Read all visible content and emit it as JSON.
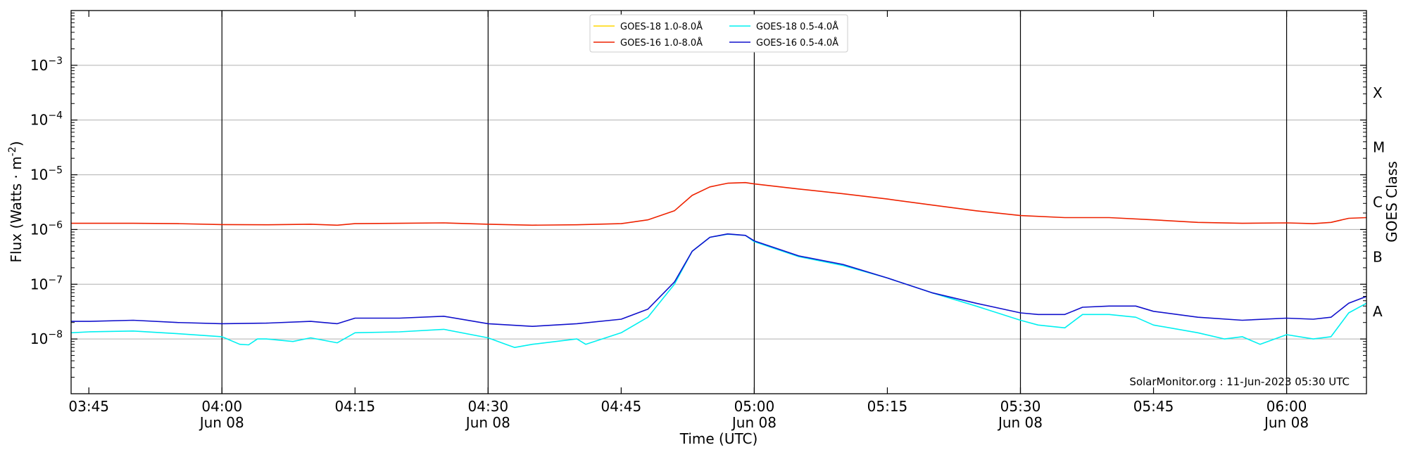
{
  "chart_data": {
    "type": "line",
    "title": "",
    "xlabel": "Time (UTC)",
    "ylabel": "Flux (Watts · m",
    "ylabel_sup": "-2",
    "ylabel_close": ")",
    "right_label": "GOES Class",
    "y_scale": "log",
    "ylim": [
      1e-09,
      0.01
    ],
    "xlim": [
      "03:43",
      "06:09"
    ],
    "x_ticks": [
      {
        "x": "03:45",
        "label": "03:45",
        "sub": ""
      },
      {
        "x": "04:00",
        "label": "04:00",
        "sub": "Jun 08"
      },
      {
        "x": "04:15",
        "label": "04:15",
        "sub": ""
      },
      {
        "x": "04:30",
        "label": "04:30",
        "sub": "Jun 08"
      },
      {
        "x": "04:45",
        "label": "04:45",
        "sub": ""
      },
      {
        "x": "05:00",
        "label": "05:00",
        "sub": "Jun 08"
      },
      {
        "x": "05:15",
        "label": "05:15",
        "sub": ""
      },
      {
        "x": "05:30",
        "label": "05:30",
        "sub": "Jun 08"
      },
      {
        "x": "05:45",
        "label": "05:45",
        "sub": ""
      },
      {
        "x": "06:00",
        "label": "06:00",
        "sub": "Jun 08"
      }
    ],
    "vertical_lines": [
      "04:00",
      "04:30",
      "05:00",
      "05:30",
      "06:00"
    ],
    "y_ticks": [
      {
        "value": 1e-08,
        "exp": "-8"
      },
      {
        "value": 1e-07,
        "exp": "-7"
      },
      {
        "value": 1e-06,
        "exp": "-6"
      },
      {
        "value": 1e-05,
        "exp": "-5"
      },
      {
        "value": 0.0001,
        "exp": "-4"
      },
      {
        "value": 0.001,
        "exp": "-3"
      }
    ],
    "class_labels": [
      {
        "label": "A",
        "value": 1e-08
      },
      {
        "label": "B",
        "value": 1e-07
      },
      {
        "label": "C",
        "value": 1e-06
      },
      {
        "label": "M",
        "value": 1e-05
      },
      {
        "label": "X",
        "value": 0.0001
      }
    ],
    "grid": "horizontal at decades",
    "legend_position": "top-center",
    "annotation": "SolarMonitor.org : 11-Jun-2023 05:30 UTC",
    "series": [
      {
        "name": "GOES-18 1.0-8.0Å",
        "color": "#ffd700",
        "x": [],
        "y": []
      },
      {
        "name": "GOES-16 1.0-8.0Å",
        "color": "#ee2200",
        "x": [
          "03:43",
          "03:45",
          "03:50",
          "03:55",
          "04:00",
          "04:05",
          "04:10",
          "04:13",
          "04:15",
          "04:20",
          "04:25",
          "04:30",
          "04:35",
          "04:40",
          "04:45",
          "04:48",
          "04:51",
          "04:53",
          "04:55",
          "04:57",
          "04:59",
          "05:00",
          "05:05",
          "05:10",
          "05:15",
          "05:20",
          "05:25",
          "05:30",
          "05:35",
          "05:40",
          "05:45",
          "05:50",
          "05:55",
          "06:00",
          "06:03",
          "06:05",
          "06:07",
          "06:09"
        ],
        "y": [
          1.3e-06,
          1.3e-06,
          1.3e-06,
          1.28e-06,
          1.23e-06,
          1.22e-06,
          1.25e-06,
          1.2e-06,
          1.28e-06,
          1.3e-06,
          1.32e-06,
          1.25e-06,
          1.2e-06,
          1.22e-06,
          1.28e-06,
          1.5e-06,
          2.2e-06,
          4.2e-06,
          6e-06,
          7e-06,
          7.2e-06,
          6.8e-06,
          5.5e-06,
          4.5e-06,
          3.6e-06,
          2.8e-06,
          2.2e-06,
          1.8e-06,
          1.65e-06,
          1.65e-06,
          1.5e-06,
          1.35e-06,
          1.3e-06,
          1.32e-06,
          1.28e-06,
          1.35e-06,
          1.6e-06,
          1.65e-06
        ]
      },
      {
        "name": "GOES-18 0.5-4.0Å",
        "color": "#00f0f0",
        "x": [
          "03:43",
          "03:45",
          "03:50",
          "03:55",
          "04:00",
          "04:02",
          "04:03",
          "04:04",
          "04:05",
          "04:08",
          "04:10",
          "04:13",
          "04:15",
          "04:20",
          "04:25",
          "04:30",
          "04:32",
          "04:33",
          "04:35",
          "04:40",
          "04:41",
          "04:45",
          "04:48",
          "04:51",
          "04:53",
          "04:55",
          "04:57",
          "04:59",
          "05:00",
          "05:05",
          "05:10",
          "05:15",
          "05:20",
          "05:25",
          "05:30",
          "05:32",
          "05:35",
          "05:37",
          "05:40",
          "05:43",
          "05:45",
          "05:50",
          "05:53",
          "05:55",
          "05:57",
          "06:00",
          "06:03",
          "06:05",
          "06:07",
          "06:09"
        ],
        "y": [
          1.3e-08,
          1.35e-08,
          1.4e-08,
          1.25e-08,
          1.1e-08,
          8e-09,
          7.8e-09,
          1e-08,
          1e-08,
          9e-09,
          1.05e-08,
          8.5e-09,
          1.3e-08,
          1.35e-08,
          1.5e-08,
          1.05e-08,
          8e-09,
          7e-09,
          8e-09,
          1e-08,
          8e-09,
          1.3e-08,
          2.5e-08,
          1e-07,
          4e-07,
          7.2e-07,
          8.2e-07,
          7.8e-07,
          6e-07,
          3.2e-07,
          2.2e-07,
          1.3e-07,
          7e-08,
          4e-08,
          2.2e-08,
          1.8e-08,
          1.6e-08,
          2.8e-08,
          2.8e-08,
          2.5e-08,
          1.8e-08,
          1.3e-08,
          1e-08,
          1.1e-08,
          8e-09,
          1.2e-08,
          1e-08,
          1.1e-08,
          3e-08,
          4.5e-08
        ]
      },
      {
        "name": "GOES-16 0.5-4.0Å",
        "color": "#1111cc",
        "x": [
          "03:43",
          "03:45",
          "03:50",
          "03:55",
          "04:00",
          "04:05",
          "04:10",
          "04:13",
          "04:15",
          "04:20",
          "04:25",
          "04:30",
          "04:35",
          "04:40",
          "04:45",
          "04:48",
          "04:51",
          "04:53",
          "04:55",
          "04:57",
          "04:59",
          "05:00",
          "05:05",
          "05:10",
          "05:15",
          "05:20",
          "05:25",
          "05:30",
          "05:32",
          "05:35",
          "05:37",
          "05:40",
          "05:43",
          "05:45",
          "05:50",
          "05:55",
          "06:00",
          "06:03",
          "06:05",
          "06:07",
          "06:09"
        ],
        "y": [
          2.1e-08,
          2.1e-08,
          2.2e-08,
          2e-08,
          1.9e-08,
          1.95e-08,
          2.1e-08,
          1.9e-08,
          2.4e-08,
          2.4e-08,
          2.6e-08,
          1.9e-08,
          1.7e-08,
          1.9e-08,
          2.3e-08,
          3.5e-08,
          1.1e-07,
          4e-07,
          7.2e-07,
          8.3e-07,
          7.8e-07,
          6.2e-07,
          3.3e-07,
          2.3e-07,
          1.3e-07,
          7e-08,
          4.5e-08,
          3e-08,
          2.8e-08,
          2.8e-08,
          3.8e-08,
          4e-08,
          4e-08,
          3.2e-08,
          2.5e-08,
          2.2e-08,
          2.4e-08,
          2.3e-08,
          2.5e-08,
          4.5e-08,
          6e-08
        ]
      }
    ]
  }
}
